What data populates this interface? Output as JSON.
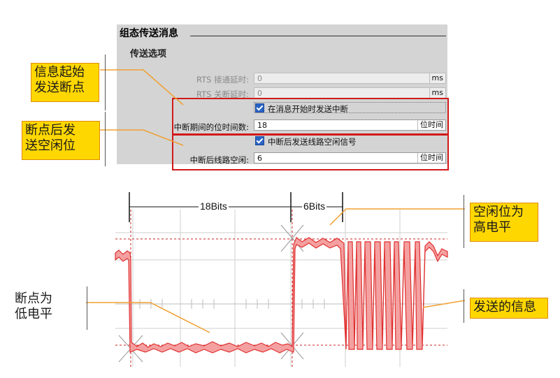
{
  "panel": {
    "title": "组态传送消息",
    "section": "传送选项",
    "rts_on_delay": {
      "label": "RTS 接通延时:",
      "value": "0",
      "unit": "ms"
    },
    "rts_off_delay": {
      "label": "RTS 关断延时:",
      "value": "0",
      "unit": "ms"
    },
    "send_break_checkbox": {
      "label": "在消息开始时发送中断",
      "checked": true
    },
    "break_bits": {
      "label": "中断期间的位时间数:",
      "value": "18",
      "unit": "位时间"
    },
    "idle_checkbox": {
      "label": "中断后发送线路空闲信号",
      "checked": true
    },
    "idle_bits": {
      "label": "中断后线路空闲:",
      "value": "6",
      "unit": "位时间"
    }
  },
  "callouts": {
    "break_start": [
      "信息起始",
      "发送断点"
    ],
    "idle_after_break": [
      "断点后发",
      "送空闲位"
    ],
    "idle_high": [
      "空闲位为",
      "高电平"
    ],
    "break_low": [
      "断点为",
      "低电平"
    ],
    "message": "发送的信息"
  },
  "waveform": {
    "break_span_label": "18Bits",
    "idle_span_label": "6Bits",
    "break_bits": 18,
    "idle_bits": 6,
    "colors": {
      "trace": "#e03030",
      "trace_fill": "#f4a0a0",
      "guide": "#cc2222",
      "callout_line": "#f0a030"
    }
  }
}
